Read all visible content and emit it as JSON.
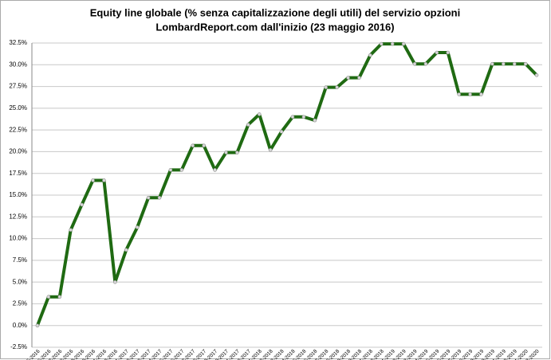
{
  "chart_data": {
    "type": "line",
    "title": "Equity line globale (% senza capitalizzazione degli utili) del servizio opzioni",
    "subtitle": "LombardReport.com dall'inizio (23 maggio 2016)",
    "categories": [
      "05-2016",
      "06-2016",
      "07-2016",
      "08-2016",
      "09-2016",
      "10-2016",
      "11-2016",
      "12-2016",
      "1-2017",
      "2-2017",
      "3-2017",
      "4-2017",
      "5-2017",
      "6-2017",
      "7-2017",
      "8-2017",
      "9-2017",
      "10-2017",
      "11-2017",
      "12-2017",
      "1-2018",
      "2-2018",
      "3-2018",
      "4-2018",
      "5-2018",
      "6-2018",
      "7-2018",
      "8-2018",
      "9-2018",
      "10-2018",
      "11-2018",
      "12-2018",
      "1-2019",
      "2-2019",
      "3-2019",
      "4-2019",
      "5-2019",
      "6-2019",
      "7-2019",
      "8-2019",
      "9-2019",
      "10-2019",
      "11-2019",
      "12-2019",
      "1-2020",
      "2-2020"
    ],
    "series": [
      {
        "color": "#1f6a12",
        "values": [
          0,
          3.3,
          3.3,
          11.0,
          13.9,
          16.7,
          16.7,
          5.0,
          8.7,
          11.3,
          14.7,
          14.7,
          17.9,
          17.9,
          20.7,
          20.7,
          17.9,
          19.9,
          19.9,
          23.1,
          24.3,
          20.2,
          22.3,
          24.0,
          24.0,
          23.6,
          27.4,
          27.4,
          28.5,
          28.5,
          31.1,
          32.4,
          32.4,
          32.4,
          30.1,
          30.1,
          31.4,
          31.4,
          26.6,
          26.6,
          26.6,
          30.1,
          30.1,
          30.1,
          30.1,
          28.8
        ]
      }
    ],
    "ylim": [
      -2.5,
      32.5
    ],
    "yticks": [
      {
        "value": -2.5,
        "label": "-2.5%"
      },
      {
        "value": 0,
        "label": "0.0%"
      },
      {
        "value": 2.5,
        "label": "2.5%"
      },
      {
        "value": 5,
        "label": "5.0%"
      },
      {
        "value": 7.5,
        "label": "7.5%"
      },
      {
        "value": 10,
        "label": "10.0%"
      },
      {
        "value": 12.5,
        "label": "12.5%"
      },
      {
        "value": 15,
        "label": "15.0%"
      },
      {
        "value": 17.5,
        "label": "17.5%"
      },
      {
        "value": 20,
        "label": "20.0%"
      },
      {
        "value": 22.5,
        "label": "22.5%"
      },
      {
        "value": 25,
        "label": "25.0%"
      },
      {
        "value": 27.5,
        "label": "27.5%"
      },
      {
        "value": 30,
        "label": "30.0%"
      },
      {
        "value": 32.5,
        "label": "32.5%"
      }
    ],
    "grid": true
  }
}
